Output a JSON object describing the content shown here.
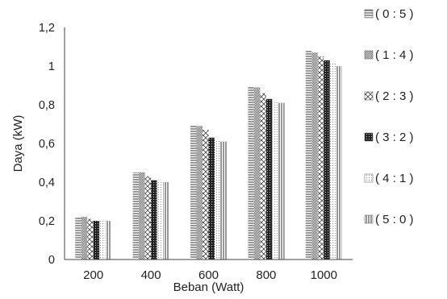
{
  "chart_data": {
    "type": "bar",
    "title": "",
    "xlabel": "Beban (Watt)",
    "ylabel": "Daya (kW)",
    "categories": [
      "200",
      "400",
      "600",
      "800",
      "1000"
    ],
    "ylim": [
      0,
      1.2
    ],
    "yticks": [
      "0",
      "0,2",
      "0,4",
      "0,6",
      "0,8",
      "1",
      "1,2"
    ],
    "grid": false,
    "legend_position": "right",
    "series": [
      {
        "name": "( 0 : 5 )",
        "pattern": "horizontal-lines",
        "values": [
          0.22,
          0.45,
          0.69,
          0.89,
          1.08
        ]
      },
      {
        "name": "( 1 : 4 )",
        "pattern": "dense-dots",
        "values": [
          0.22,
          0.45,
          0.69,
          0.89,
          1.07
        ]
      },
      {
        "name": "( 2 : 3 )",
        "pattern": "diamond-grid",
        "values": [
          0.21,
          0.43,
          0.67,
          0.86,
          1.05
        ]
      },
      {
        "name": "( 3 : 2 )",
        "pattern": "dark-dots",
        "values": [
          0.2,
          0.41,
          0.63,
          0.83,
          1.03
        ]
      },
      {
        "name": "( 4 : 1 )",
        "pattern": "sparse-dots",
        "values": [
          0.2,
          0.41,
          0.62,
          0.82,
          1.02
        ]
      },
      {
        "name": "( 5 : 0 )",
        "pattern": "vertical-lines",
        "values": [
          0.2,
          0.4,
          0.61,
          0.81,
          1.0
        ]
      }
    ]
  }
}
